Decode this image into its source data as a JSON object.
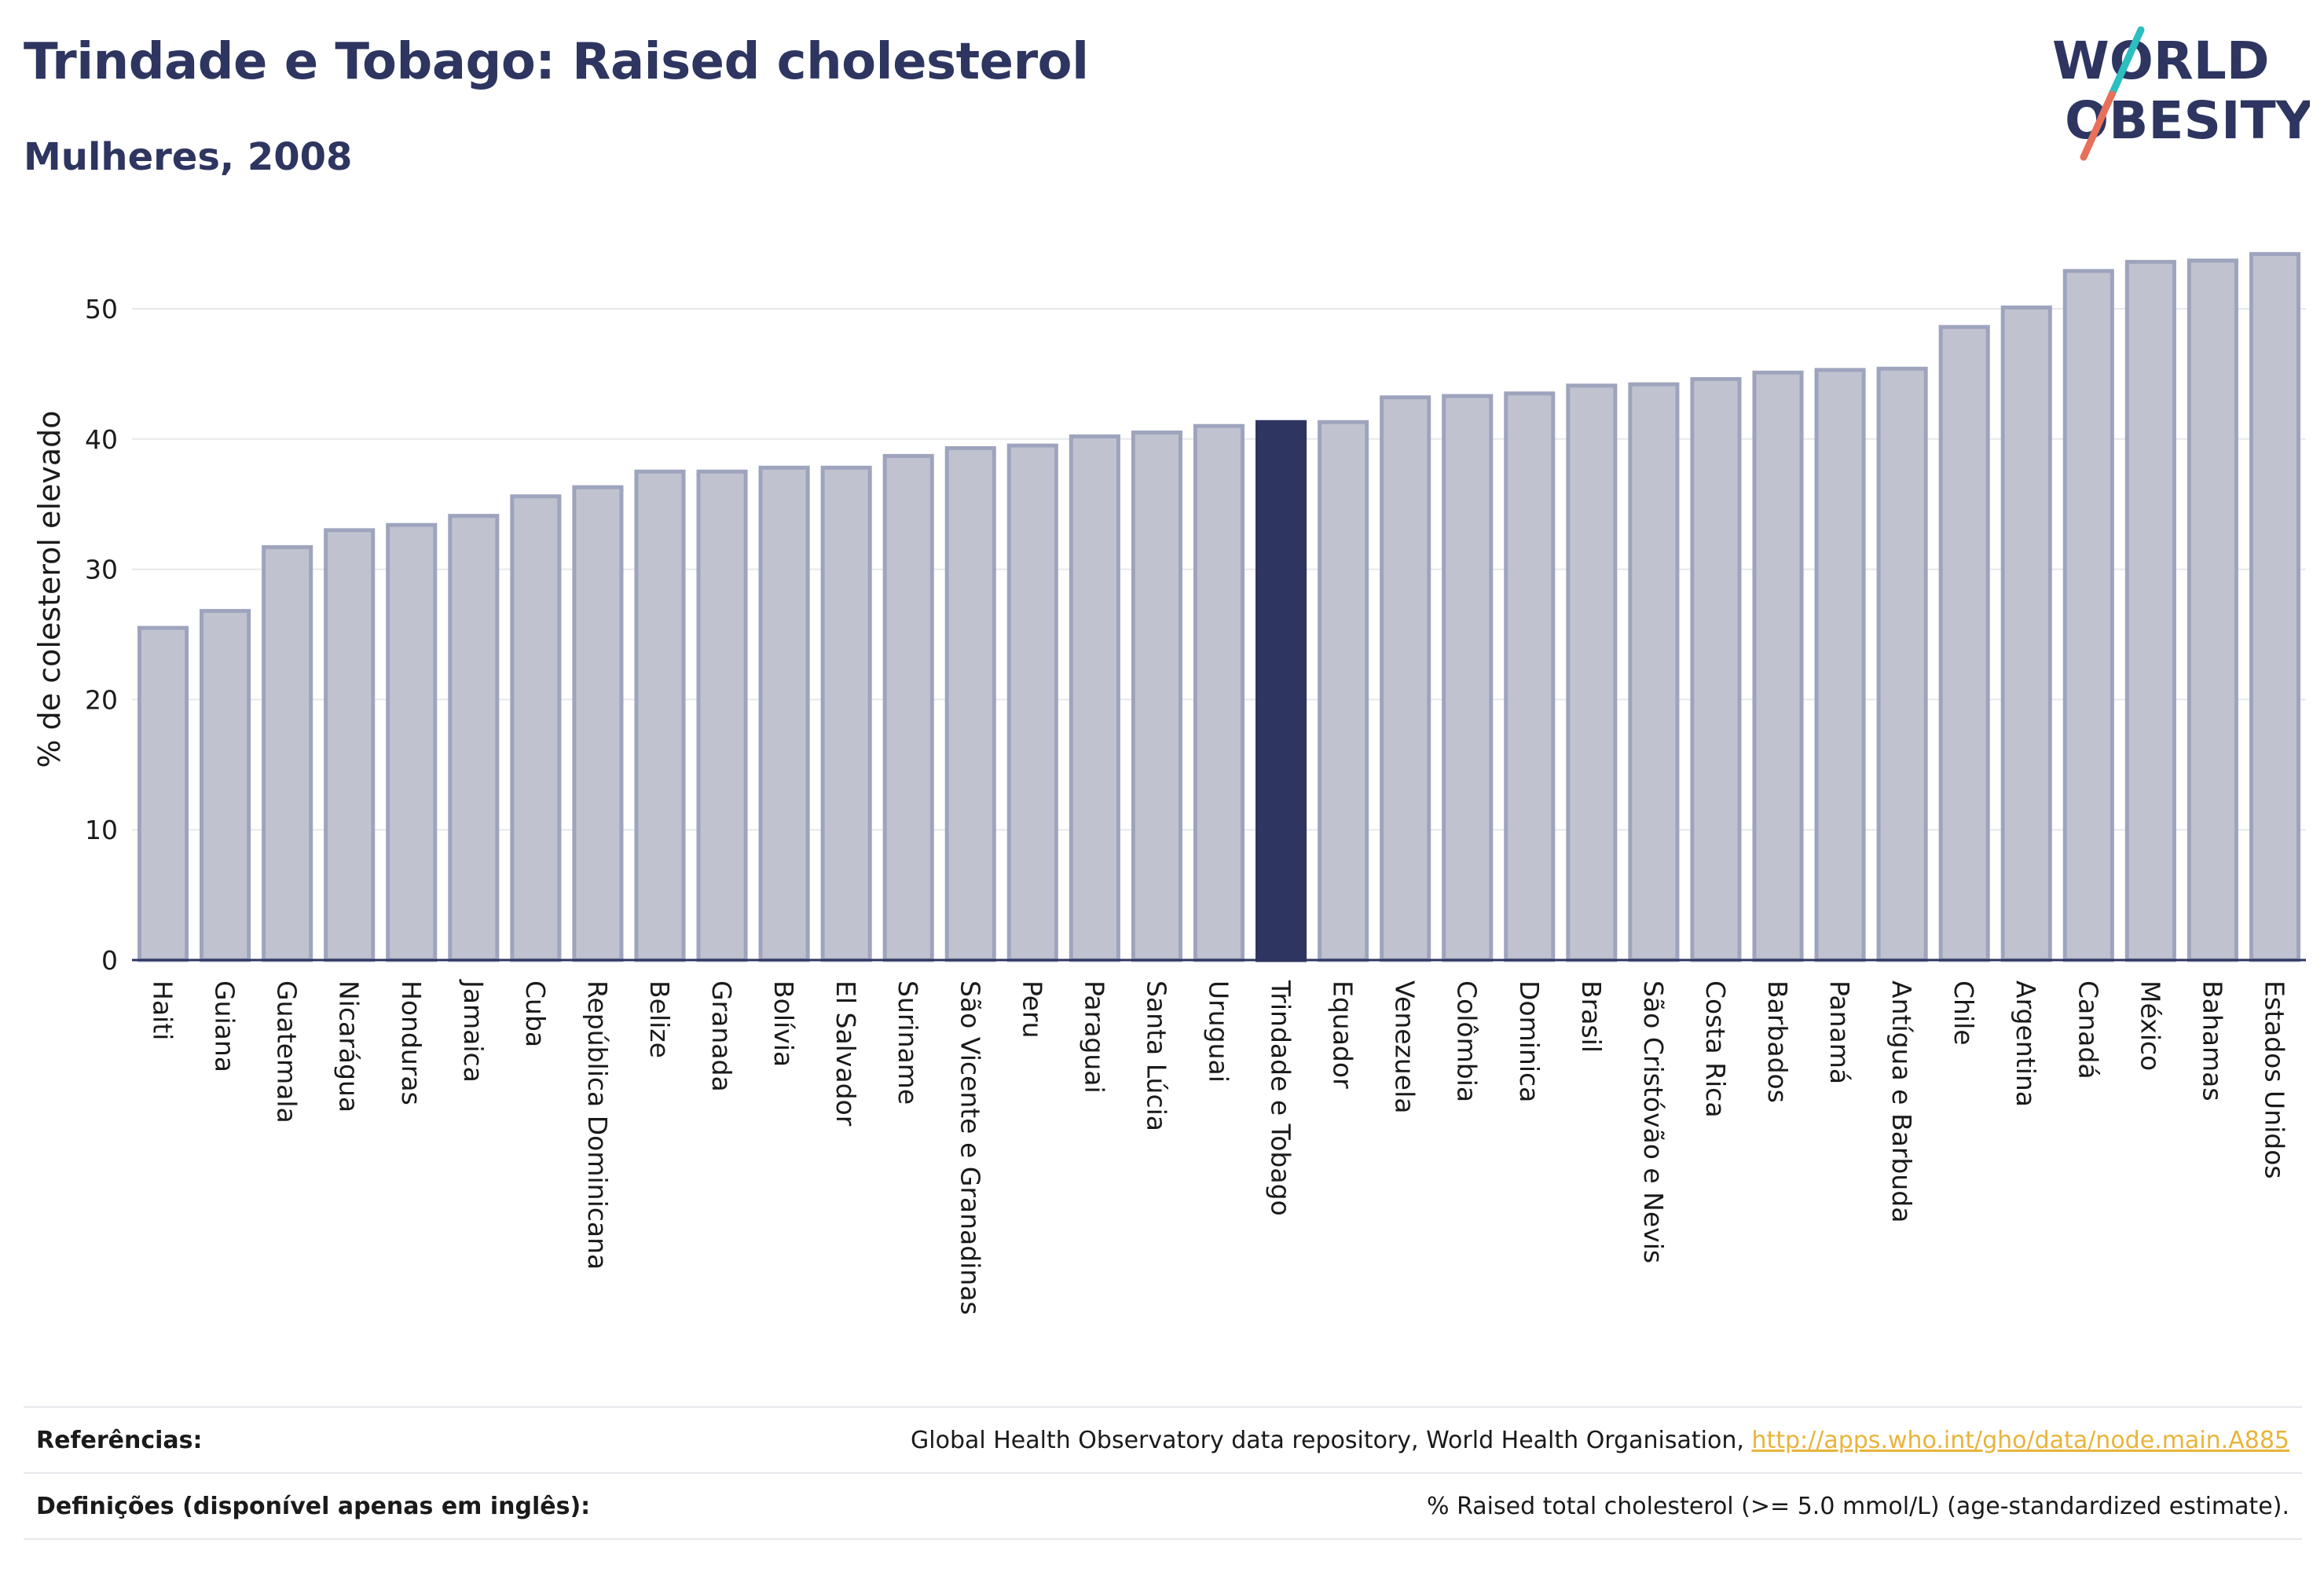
{
  "header": {
    "title": "Trindade e Tobago: Raised cholesterol",
    "subtitle": "Mulheres, 2008"
  },
  "logo": {
    "line1": "WORLD",
    "line2": "OBESITY",
    "colors": {
      "text": "#2d3560",
      "accent1": "#2bbfbf",
      "accent2": "#e8705a"
    }
  },
  "colors": {
    "bar": "#c0c3cf",
    "bar_border": "#9ea4bd",
    "highlight": "#2d3560",
    "grid": "#e6e8ec",
    "axis": "#2d3560"
  },
  "chart_data": {
    "type": "bar",
    "title": "Trindade e Tobago: Raised cholesterol",
    "subtitle": "Mulheres, 2008",
    "ylabel": "% de colesterol elevado",
    "xlabel": "",
    "ylim": [
      0,
      55
    ],
    "yticks": [
      0,
      10,
      20,
      30,
      40,
      50
    ],
    "grid": true,
    "highlight": "Trindade e Tobago",
    "categories": [
      "Haiti",
      "Guiana",
      "Guatemala",
      "Nicarágua",
      "Honduras",
      "Jamaica",
      "Cuba",
      "República Dominicana",
      "Belize",
      "Granada",
      "Bolívia",
      "El Salvador",
      "Suriname",
      "São Vicente e Granadinas",
      "Peru",
      "Paraguai",
      "Santa Lúcia",
      "Uruguai",
      "Trindade e Tobago",
      "Equador",
      "Venezuela",
      "Colômbia",
      "Dominica",
      "Brasil",
      "São Cristóvão e Nevis",
      "Costa Rica",
      "Barbados",
      "Panamá",
      "Antígua e Barbuda",
      "Chile",
      "Argentina",
      "Canadá",
      "México",
      "Bahamas",
      "Estados Unidos"
    ],
    "values": [
      25.5,
      26.8,
      31.7,
      33.0,
      33.4,
      34.1,
      35.6,
      36.3,
      37.5,
      37.5,
      37.8,
      37.8,
      38.7,
      39.3,
      39.5,
      40.2,
      40.5,
      41.0,
      41.3,
      41.3,
      43.2,
      43.3,
      43.5,
      44.1,
      44.2,
      44.6,
      45.1,
      45.3,
      45.4,
      48.6,
      50.1,
      52.9,
      53.6,
      53.7,
      54.2
    ]
  },
  "footer": {
    "references_label": "Referências:",
    "references_text": "Global Health Observatory data repository, World Health Organisation, ",
    "references_link": "http://apps.who.int/gho/data/node.main.A885",
    "definitions_label": "Definições (disponível apenas em inglês):",
    "definitions_text": "% Raised total cholesterol (>= 5.0 mmol/L) (age-standardized estimate)."
  }
}
